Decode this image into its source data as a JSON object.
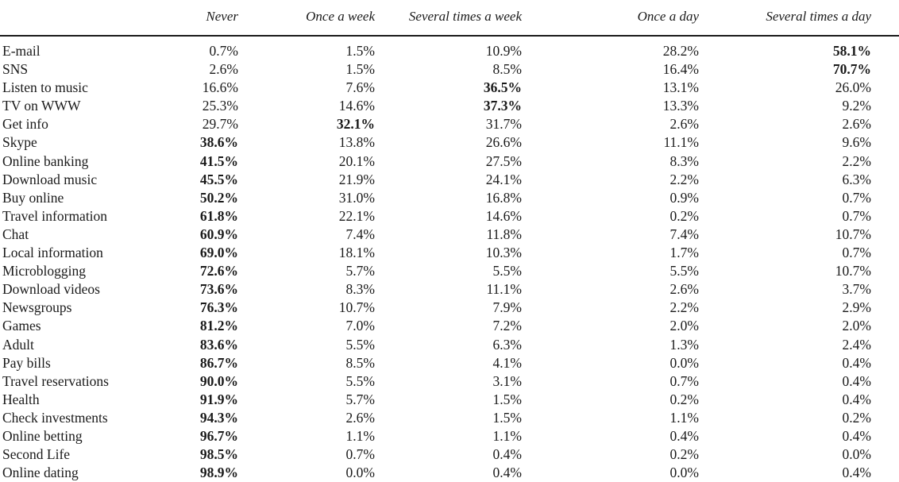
{
  "table": {
    "columns": [
      "Never",
      "Once a week",
      "Several times a week",
      "Once a day",
      "Several times a day"
    ],
    "rows": [
      {
        "label": "E-mail",
        "values": [
          "0.7%",
          "1.5%",
          "10.9%",
          "28.2%",
          "58.1%"
        ],
        "bold": [
          4
        ]
      },
      {
        "label": "SNS",
        "values": [
          "2.6%",
          "1.5%",
          "8.5%",
          "16.4%",
          "70.7%"
        ],
        "bold": [
          4
        ]
      },
      {
        "label": "Listen to music",
        "values": [
          "16.6%",
          "7.6%",
          "36.5%",
          "13.1%",
          "26.0%"
        ],
        "bold": [
          2
        ]
      },
      {
        "label": "TV on WWW",
        "values": [
          "25.3%",
          "14.6%",
          "37.3%",
          "13.3%",
          "9.2%"
        ],
        "bold": [
          2
        ]
      },
      {
        "label": "Get info",
        "values": [
          "29.7%",
          "32.1%",
          "31.7%",
          "2.6%",
          "2.6%"
        ],
        "bold": [
          1
        ]
      },
      {
        "label": "Skype",
        "values": [
          "38.6%",
          "13.8%",
          "26.6%",
          "11.1%",
          "9.6%"
        ],
        "bold": [
          0
        ]
      },
      {
        "label": "Online banking",
        "values": [
          "41.5%",
          "20.1%",
          "27.5%",
          "8.3%",
          "2.2%"
        ],
        "bold": [
          0
        ]
      },
      {
        "label": "Download music",
        "values": [
          "45.5%",
          "21.9%",
          "24.1%",
          "2.2%",
          "6.3%"
        ],
        "bold": [
          0
        ]
      },
      {
        "label": "Buy online",
        "values": [
          "50.2%",
          "31.0%",
          "16.8%",
          "0.9%",
          "0.7%"
        ],
        "bold": [
          0
        ]
      },
      {
        "label": "Travel information",
        "values": [
          "61.8%",
          "22.1%",
          "14.6%",
          "0.2%",
          "0.7%"
        ],
        "bold": [
          0
        ]
      },
      {
        "label": "Chat",
        "values": [
          "60.9%",
          "7.4%",
          "11.8%",
          "7.4%",
          "10.7%"
        ],
        "bold": [
          0
        ]
      },
      {
        "label": "Local information",
        "values": [
          "69.0%",
          "18.1%",
          "10.3%",
          "1.7%",
          "0.7%"
        ],
        "bold": [
          0
        ]
      },
      {
        "label": "Microblogging",
        "values": [
          "72.6%",
          "5.7%",
          "5.5%",
          "5.5%",
          "10.7%"
        ],
        "bold": [
          0
        ]
      },
      {
        "label": "Download videos",
        "values": [
          "73.6%",
          "8.3%",
          "11.1%",
          "2.6%",
          "3.7%"
        ],
        "bold": [
          0
        ]
      },
      {
        "label": "Newsgroups",
        "values": [
          "76.3%",
          "10.7%",
          "7.9%",
          "2.2%",
          "2.9%"
        ],
        "bold": [
          0
        ]
      },
      {
        "label": "Games",
        "values": [
          "81.2%",
          "7.0%",
          "7.2%",
          "2.0%",
          "2.0%"
        ],
        "bold": [
          0
        ]
      },
      {
        "label": "Adult",
        "values": [
          "83.6%",
          "5.5%",
          "6.3%",
          "1.3%",
          "2.4%"
        ],
        "bold": [
          0
        ]
      },
      {
        "label": "Pay bills",
        "values": [
          "86.7%",
          "8.5%",
          "4.1%",
          "0.0%",
          "0.4%"
        ],
        "bold": [
          0
        ]
      },
      {
        "label": "Travel reservations",
        "values": [
          "90.0%",
          "5.5%",
          "3.1%",
          "0.7%",
          "0.4%"
        ],
        "bold": [
          0
        ]
      },
      {
        "label": "Health",
        "values": [
          "91.9%",
          "5.7%",
          "1.5%",
          "0.2%",
          "0.4%"
        ],
        "bold": [
          0
        ]
      },
      {
        "label": "Check investments",
        "values": [
          "94.3%",
          "2.6%",
          "1.5%",
          "1.1%",
          "0.2%"
        ],
        "bold": [
          0
        ]
      },
      {
        "label": "Online betting",
        "values": [
          "96.7%",
          "1.1%",
          "1.1%",
          "0.4%",
          "0.4%"
        ],
        "bold": [
          0
        ]
      },
      {
        "label": "Second Life",
        "values": [
          "98.5%",
          "0.7%",
          "0.4%",
          "0.2%",
          "0.0%"
        ],
        "bold": [
          0
        ]
      },
      {
        "label": "Online dating",
        "values": [
          "98.9%",
          "0.0%",
          "0.4%",
          "0.0%",
          "0.4%"
        ],
        "bold": [
          0
        ]
      }
    ]
  }
}
